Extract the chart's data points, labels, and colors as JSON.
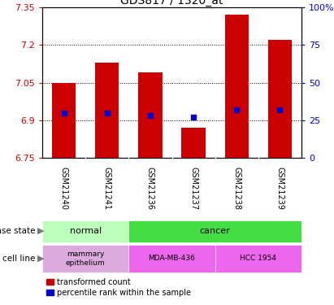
{
  "title": "GDS817 / 1320_at",
  "samples": [
    "GSM21240",
    "GSM21241",
    "GSM21236",
    "GSM21237",
    "GSM21238",
    "GSM21239"
  ],
  "transformed_counts": [
    7.05,
    7.13,
    7.09,
    6.87,
    7.32,
    7.22
  ],
  "percentile_ranks": [
    30,
    30,
    28,
    27,
    32,
    32
  ],
  "ylim_left": [
    6.75,
    7.35
  ],
  "yticks_left": [
    6.75,
    6.9,
    7.05,
    7.2,
    7.35
  ],
  "ylim_right": [
    0,
    100
  ],
  "yticks_right": [
    0,
    25,
    50,
    75,
    100
  ],
  "bar_color": "#cc0000",
  "dot_color": "#0000cc",
  "bar_bottom": 6.75,
  "normal_color": "#bbffbb",
  "cancer_color": "#44dd44",
  "mammary_color": "#ddaadd",
  "mda_color": "#ee66ee",
  "hcc_color": "#ee66ee",
  "sample_bg": "#cccccc",
  "left_tick_color": "#cc0000",
  "right_tick_color": "#0000cc",
  "title_fontsize": 10,
  "tick_fontsize": 8,
  "sample_fontsize": 7,
  "annotation_fontsize": 8
}
